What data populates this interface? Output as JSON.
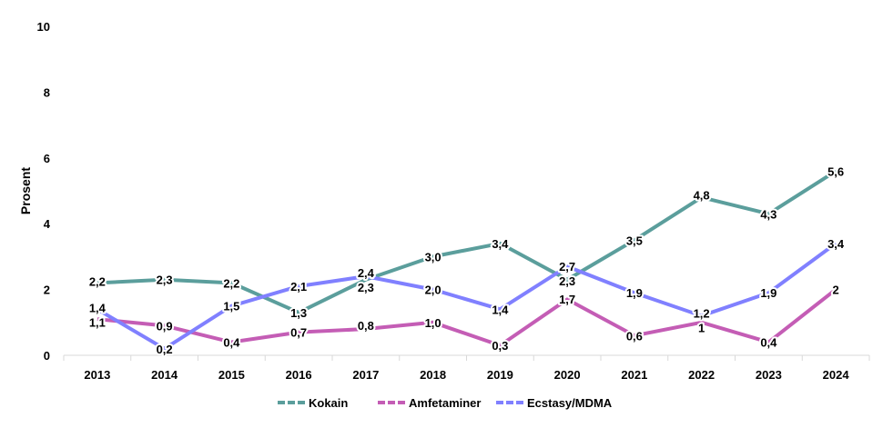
{
  "chart_data": {
    "type": "line",
    "title": "",
    "xlabel": "",
    "ylabel": "Prosent",
    "ylim": [
      0,
      10
    ],
    "yticks": [
      "0",
      "2",
      "4",
      "6",
      "8",
      "10"
    ],
    "categories": [
      "2013",
      "2014",
      "2015",
      "2016",
      "2017",
      "2018",
      "2019",
      "2020",
      "2021",
      "2022",
      "2023",
      "2024"
    ],
    "grid": false,
    "legend_position": "bottom",
    "series": [
      {
        "name": "Kokain",
        "color": "#5B9E9C",
        "values": [
          2.2,
          2.3,
          2.2,
          1.3,
          2.3,
          3.0,
          3.4,
          2.3,
          3.5,
          4.8,
          4.3,
          5.6
        ],
        "labels": [
          "2,2",
          "2,3",
          "2,2",
          "1,3",
          "2,3",
          "3,0",
          "3,4",
          "2,3",
          "3,5",
          "4,8",
          "4,3",
          "5,6"
        ]
      },
      {
        "name": "Amfetaminer",
        "color": "#C45DB5",
        "values": [
          1.1,
          0.9,
          0.4,
          0.7,
          0.8,
          1.0,
          0.3,
          1.7,
          0.6,
          1,
          0.4,
          2
        ],
        "labels": [
          "1,1",
          "0,9",
          "0,4",
          "0,7",
          "0,8",
          "1,0",
          "0,3",
          "1,7",
          "0,6",
          "1",
          "0,4",
          "2"
        ]
      },
      {
        "name": "Ecstasy/MDMA",
        "color": "#8080FF",
        "values": [
          1.4,
          0.2,
          1.5,
          2.1,
          2.4,
          2.0,
          1.4,
          2.7,
          1.9,
          1.2,
          1.9,
          3.4
        ],
        "labels": [
          "1,4",
          "0,2",
          "1,5",
          "2,1",
          "2,4",
          "2,0",
          "1,4",
          "2,7",
          "1,9",
          "1,2",
          "1,9",
          "3,4"
        ]
      }
    ]
  }
}
